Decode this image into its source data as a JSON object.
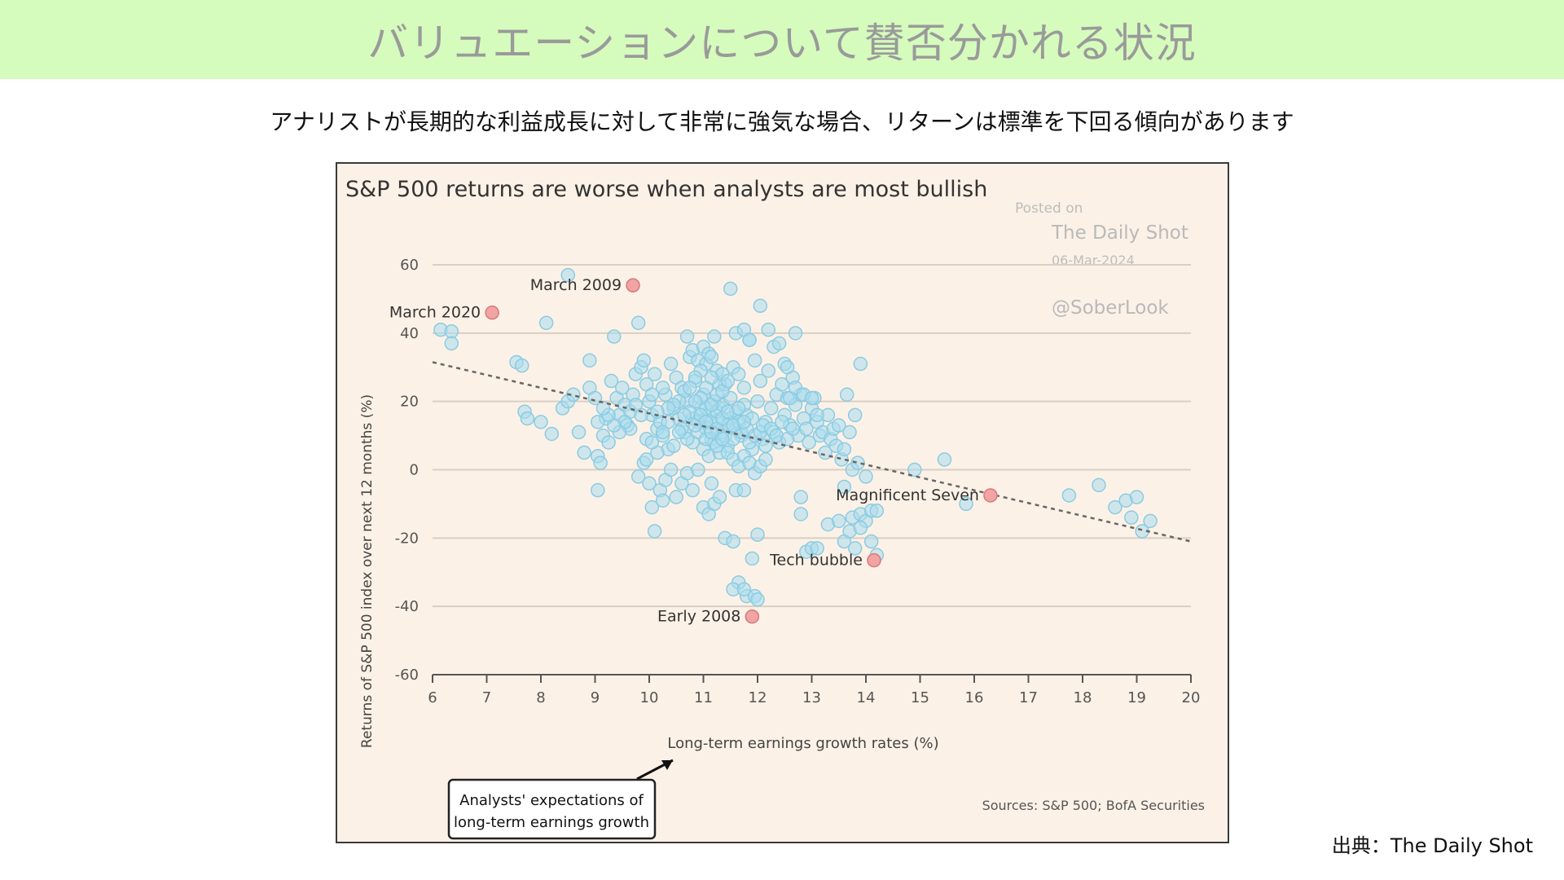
{
  "page": {
    "banner_title": "バリュエーションについて賛否分かれる状況",
    "subtitle": "アナリストが長期的な利益成長に対して非常に強気な場合、リターンは標準を下回る傾向があります",
    "source_note": "出典：The Daily Shot"
  },
  "chart_data": {
    "type": "scatter",
    "title": "S&P 500 returns are worse when analysts are most bullish",
    "xlabel": "Long-term earnings growth rates (%)",
    "ylabel": "Returns of S&P 500 index over next 12 months (%)",
    "xlim": [
      6,
      20
    ],
    "ylim": [
      -60,
      60
    ],
    "x_ticks": [
      6,
      7,
      8,
      9,
      10,
      11,
      12,
      13,
      14,
      15,
      16,
      17,
      18,
      19,
      20
    ],
    "y_ticks": [
      60,
      40,
      20,
      0,
      -20,
      -40,
      -60
    ],
    "grid": "horizontal",
    "watermark": {
      "posted_on": "Posted on",
      "site": "The Daily Shot",
      "date": "06-Mar-2024",
      "handle": "@SoberLook"
    },
    "sources": "Sources: S&P 500; BofA Securities",
    "callout": "Analysts' expectations of long-term earnings growth",
    "callout_lines": [
      "Analysts' expectations of",
      "long-term earnings growth"
    ],
    "trendline": {
      "x": [
        6,
        20
      ],
      "y": [
        31.5,
        -21
      ]
    },
    "highlighted": [
      {
        "label": "March 2020",
        "x": 7.1,
        "y": 46
      },
      {
        "label": "March 2009",
        "x": 9.7,
        "y": 54
      },
      {
        "label": "Magnificent Seven",
        "x": 16.3,
        "y": -7.5
      },
      {
        "label": "Tech bubble",
        "x": 14.15,
        "y": -26.5
      },
      {
        "label": "Early 2008",
        "x": 11.9,
        "y": -43
      }
    ],
    "series": [
      {
        "points": [
          [
            6.15,
            41
          ],
          [
            6.35,
            40.5
          ],
          [
            6.35,
            37
          ],
          [
            7.55,
            31.5
          ],
          [
            7.65,
            30.5
          ],
          [
            7.7,
            17
          ],
          [
            7.75,
            15
          ],
          [
            8.0,
            14
          ],
          [
            8.1,
            43
          ],
          [
            8.2,
            10.5
          ],
          [
            8.4,
            18
          ],
          [
            8.5,
            20
          ],
          [
            8.5,
            57
          ],
          [
            8.6,
            22
          ],
          [
            8.7,
            11
          ],
          [
            8.8,
            5
          ],
          [
            8.9,
            24
          ],
          [
            8.9,
            32
          ],
          [
            9.0,
            21
          ],
          [
            9.05,
            4
          ],
          [
            9.1,
            2
          ],
          [
            9.15,
            10
          ],
          [
            9.2,
            15
          ],
          [
            9.25,
            8
          ],
          [
            9.3,
            26
          ],
          [
            9.35,
            39
          ],
          [
            9.4,
            21
          ],
          [
            9.45,
            16
          ],
          [
            9.5,
            24
          ],
          [
            9.55,
            19
          ],
          [
            9.6,
            13
          ],
          [
            9.65,
            17
          ],
          [
            9.7,
            22
          ],
          [
            9.75,
            28
          ],
          [
            9.8,
            43
          ],
          [
            9.85,
            30
          ],
          [
            9.9,
            32
          ],
          [
            9.95,
            25
          ],
          [
            10.0,
            20
          ],
          [
            10.05,
            16
          ],
          [
            10.1,
            28
          ],
          [
            10.15,
            12
          ],
          [
            10.2,
            14
          ],
          [
            10.25,
            10
          ],
          [
            10.3,
            22
          ],
          [
            10.35,
            6
          ],
          [
            10.4,
            31
          ],
          [
            10.45,
            18
          ],
          [
            10.5,
            27
          ],
          [
            10.55,
            15
          ],
          [
            10.6,
            24
          ],
          [
            10.65,
            11
          ],
          [
            10.7,
            20
          ],
          [
            10.75,
            33
          ],
          [
            10.8,
            8
          ],
          [
            10.85,
            26
          ],
          [
            10.9,
            14
          ],
          [
            10.95,
            18
          ],
          [
            11.0,
            22
          ],
          [
            11.05,
            12
          ],
          [
            11.1,
            16
          ],
          [
            11.15,
            9
          ],
          [
            11.2,
            20
          ],
          [
            11.25,
            14
          ],
          [
            11.3,
            18
          ],
          [
            11.35,
            11
          ],
          [
            11.4,
            25
          ],
          [
            11.45,
            7
          ],
          [
            11.5,
            15
          ],
          [
            11.55,
            30
          ],
          [
            11.6,
            12
          ],
          [
            11.65,
            28
          ],
          [
            11.7,
            10
          ],
          [
            11.75,
            24
          ],
          [
            11.8,
            16
          ],
          [
            11.85,
            38
          ],
          [
            11.9,
            6
          ],
          [
            11.95,
            32
          ],
          [
            12.0,
            20
          ],
          [
            12.05,
            26
          ],
          [
            12.1,
            9
          ],
          [
            12.15,
            14
          ],
          [
            12.2,
            29
          ],
          [
            12.25,
            18
          ],
          [
            12.3,
            11
          ],
          [
            12.35,
            22
          ],
          [
            12.4,
            8
          ],
          [
            12.45,
            25
          ],
          [
            12.5,
            16
          ],
          [
            12.55,
            21
          ],
          [
            12.6,
            13
          ],
          [
            12.65,
            27
          ],
          [
            12.7,
            19
          ],
          [
            12.75,
            10
          ],
          [
            12.8,
            22
          ],
          [
            12.85,
            15
          ],
          [
            12.9,
            12
          ],
          [
            12.95,
            8
          ],
          [
            13.0,
            18
          ],
          [
            13.05,
            21
          ],
          [
            13.1,
            14
          ],
          [
            13.15,
            10
          ],
          [
            13.2,
            11
          ],
          [
            13.25,
            5
          ],
          [
            13.3,
            16
          ],
          [
            13.35,
            9
          ],
          [
            13.4,
            12
          ],
          [
            13.45,
            7
          ],
          [
            13.5,
            13
          ],
          [
            13.55,
            3
          ],
          [
            13.6,
            6
          ],
          [
            13.65,
            22
          ],
          [
            13.7,
            11
          ],
          [
            13.75,
            0
          ],
          [
            13.8,
            16
          ],
          [
            13.85,
            2
          ],
          [
            13.9,
            31
          ],
          [
            14.0,
            -2
          ],
          [
            13.6,
            -5
          ],
          [
            9.05,
            -6
          ],
          [
            9.8,
            -2
          ],
          [
            9.9,
            2
          ],
          [
            10.0,
            -4
          ],
          [
            10.05,
            -11
          ],
          [
            10.1,
            -18
          ],
          [
            10.2,
            -6
          ],
          [
            10.25,
            -9
          ],
          [
            10.3,
            -3
          ],
          [
            10.4,
            0
          ],
          [
            10.5,
            -8
          ],
          [
            10.6,
            -4
          ],
          [
            10.7,
            -1
          ],
          [
            10.8,
            -6
          ],
          [
            10.9,
            0
          ],
          [
            11.0,
            -11
          ],
          [
            11.1,
            -13
          ],
          [
            11.15,
            -4
          ],
          [
            11.2,
            -10
          ],
          [
            11.3,
            -8
          ],
          [
            11.4,
            -20
          ],
          [
            11.55,
            -21
          ],
          [
            11.6,
            -6
          ],
          [
            11.75,
            -6
          ],
          [
            12.0,
            -19
          ],
          [
            11.65,
            -33
          ],
          [
            11.55,
            -35
          ],
          [
            11.8,
            -37
          ],
          [
            11.95,
            -37
          ],
          [
            12.0,
            -38
          ],
          [
            11.75,
            -35
          ],
          [
            11.9,
            -26
          ],
          [
            12.8,
            -8
          ],
          [
            12.8,
            -13
          ],
          [
            12.9,
            -24
          ],
          [
            13.0,
            -23
          ],
          [
            13.1,
            -23
          ],
          [
            13.3,
            -16
          ],
          [
            13.5,
            -15
          ],
          [
            13.6,
            -21
          ],
          [
            13.7,
            -18
          ],
          [
            13.75,
            -14
          ],
          [
            13.8,
            -23
          ],
          [
            13.9,
            -13
          ],
          [
            14.0,
            -15
          ],
          [
            14.1,
            -12
          ],
          [
            14.2,
            -12
          ],
          [
            14.2,
            -25
          ],
          [
            13.9,
            -17
          ],
          [
            14.1,
            -21
          ],
          [
            14.9,
            0
          ],
          [
            15.45,
            3
          ],
          [
            15.85,
            -10
          ],
          [
            17.75,
            -7.5
          ],
          [
            18.3,
            -4.5
          ],
          [
            18.6,
            -11
          ],
          [
            18.8,
            -9
          ],
          [
            18.9,
            -14
          ],
          [
            19.0,
            -8
          ],
          [
            19.1,
            -18
          ],
          [
            19.25,
            -15
          ],
          [
            11.5,
            53
          ],
          [
            11.6,
            40
          ],
          [
            11.75,
            41
          ],
          [
            11.85,
            38
          ],
          [
            12.05,
            48
          ],
          [
            12.2,
            41
          ],
          [
            12.3,
            36
          ],
          [
            12.4,
            37
          ],
          [
            12.5,
            31
          ],
          [
            12.7,
            40
          ],
          [
            12.55,
            30
          ],
          [
            12.6,
            21
          ],
          [
            12.7,
            24
          ],
          [
            12.85,
            22
          ],
          [
            13.0,
            21
          ],
          [
            13.1,
            16
          ],
          [
            10.7,
            39
          ],
          [
            10.8,
            35
          ],
          [
            10.9,
            32
          ],
          [
            11.0,
            36
          ],
          [
            11.05,
            31
          ],
          [
            11.1,
            34
          ],
          [
            11.15,
            33
          ],
          [
            11.2,
            39
          ],
          [
            11.25,
            29
          ],
          [
            11.3,
            25
          ],
          [
            11.35,
            28
          ],
          [
            10.95,
            29
          ],
          [
            10.85,
            27
          ],
          [
            10.65,
            23
          ],
          [
            10.55,
            20
          ],
          [
            10.45,
            19
          ],
          [
            10.35,
            18
          ],
          [
            10.25,
            24
          ],
          [
            10.15,
            17
          ],
          [
            10.05,
            22
          ],
          [
            9.95,
            9
          ],
          [
            9.85,
            16
          ],
          [
            9.75,
            19
          ],
          [
            9.65,
            12
          ],
          [
            9.55,
            14
          ],
          [
            9.45,
            11
          ],
          [
            9.35,
            13
          ],
          [
            9.25,
            16
          ],
          [
            9.15,
            18
          ],
          [
            9.05,
            14
          ],
          [
            10.6,
            12
          ],
          [
            10.7,
            9
          ],
          [
            10.8,
            15
          ],
          [
            10.9,
            11
          ],
          [
            11.0,
            6
          ],
          [
            11.05,
            18
          ],
          [
            11.1,
            4
          ],
          [
            11.15,
            14
          ],
          [
            11.2,
            8
          ],
          [
            11.25,
            17
          ],
          [
            11.3,
            5
          ],
          [
            11.35,
            19
          ],
          [
            11.4,
            10
          ],
          [
            11.45,
            13
          ],
          [
            11.5,
            21
          ],
          [
            11.55,
            9
          ],
          [
            11.6,
            17
          ],
          [
            11.65,
            14
          ],
          [
            11.7,
            11
          ],
          [
            11.75,
            19
          ],
          [
            11.8,
            12
          ],
          [
            11.85,
            8
          ],
          [
            11.9,
            15
          ],
          [
            11.95,
            10
          ],
          [
            12.05,
            11
          ],
          [
            12.1,
            13
          ],
          [
            12.15,
            7
          ],
          [
            12.25,
            12
          ],
          [
            12.35,
            10
          ],
          [
            12.45,
            14
          ],
          [
            12.55,
            9
          ],
          [
            12.65,
            12
          ],
          [
            10.75,
            17
          ],
          [
            10.85,
            13
          ],
          [
            10.95,
            16
          ],
          [
            11.05,
            14
          ],
          [
            11.15,
            19
          ],
          [
            11.25,
            12
          ],
          [
            11.35,
            15
          ],
          [
            11.45,
            17
          ],
          [
            11.55,
            13
          ],
          [
            11.65,
            18
          ],
          [
            11.75,
            14
          ],
          [
            11.05,
            24
          ],
          [
            11.15,
            27
          ],
          [
            11.25,
            22
          ],
          [
            11.35,
            23
          ],
          [
            11.45,
            26
          ],
          [
            10.95,
            21
          ],
          [
            10.85,
            20
          ],
          [
            10.75,
            24
          ],
          [
            10.65,
            16
          ],
          [
            10.55,
            11
          ],
          [
            10.45,
            7
          ],
          [
            10.35,
            14
          ],
          [
            10.25,
            11
          ],
          [
            10.15,
            5
          ],
          [
            10.05,
            8
          ],
          [
            9.95,
            3
          ],
          [
            11.05,
            9
          ],
          [
            11.15,
            11
          ],
          [
            11.25,
            7
          ],
          [
            11.35,
            9
          ],
          [
            11.45,
            5
          ],
          [
            11.55,
            3
          ],
          [
            11.65,
            1
          ],
          [
            11.75,
            4
          ],
          [
            11.85,
            2
          ],
          [
            11.95,
            -1
          ],
          [
            12.05,
            1
          ],
          [
            12.15,
            3
          ]
        ]
      }
    ]
  }
}
